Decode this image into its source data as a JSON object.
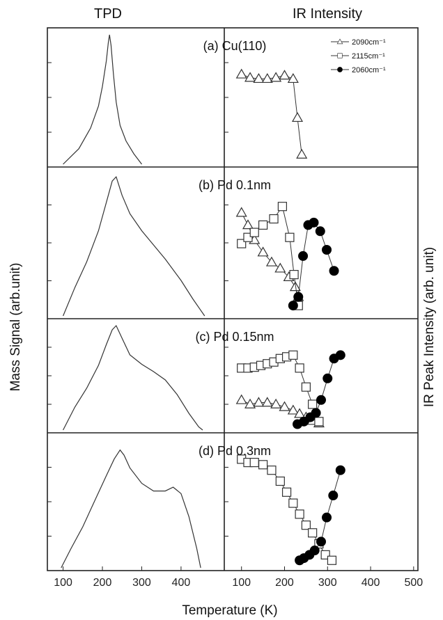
{
  "headers": {
    "left": "TPD",
    "right": "IR Intensity"
  },
  "ylabel_left": "Mass Signal (arb.unit)",
  "ylabel_right": "IR Peak Intensity (arb. unit)",
  "xlabel": "Temperature (K)",
  "colors": {
    "line": "#333333",
    "frame": "#222222",
    "filled": "#000000"
  },
  "chart_data": [
    {
      "type": "line",
      "panel": "TPD",
      "xlabel": "Temperature (K)",
      "ylabel": "Mass Signal (arb.unit)",
      "xlim": [
        60,
        510
      ],
      "xticks": [
        100,
        200,
        300,
        400
      ],
      "grid": false,
      "subplots": [
        {
          "label": "",
          "series": [
            {
              "x": [
                100,
                140,
                170,
                190,
                200,
                210,
                215,
                218,
                222,
                228,
                235,
                245,
                260,
                280,
                300
              ],
              "y": [
                0.0,
                0.12,
                0.28,
                0.45,
                0.6,
                0.8,
                0.94,
                1.0,
                0.92,
                0.7,
                0.48,
                0.3,
                0.18,
                0.08,
                0.0
              ]
            }
          ]
        },
        {
          "label": "",
          "series": [
            {
              "x": [
                100,
                130,
                160,
                190,
                210,
                225,
                235,
                250,
                270,
                300,
                330,
                360,
                400,
                430,
                450,
                460
              ],
              "y": [
                0.0,
                0.2,
                0.38,
                0.6,
                0.8,
                0.95,
                0.98,
                0.85,
                0.72,
                0.6,
                0.5,
                0.4,
                0.25,
                0.12,
                0.04,
                0.0
              ]
            }
          ]
        },
        {
          "label": "",
          "series": [
            {
              "x": [
                100,
                130,
                160,
                190,
                210,
                225,
                235,
                250,
                270,
                300,
                330,
                360,
                390,
                420,
                445,
                455
              ],
              "y": [
                0.0,
                0.22,
                0.4,
                0.62,
                0.82,
                0.96,
                1.0,
                0.88,
                0.72,
                0.63,
                0.56,
                0.48,
                0.34,
                0.16,
                0.03,
                0.0
              ]
            }
          ]
        },
        {
          "label": "",
          "series": [
            {
              "x": [
                95,
                120,
                150,
                180,
                210,
                230,
                245,
                255,
                270,
                300,
                330,
                360,
                380,
                400,
                420,
                440,
                450
              ],
              "y": [
                0.0,
                0.15,
                0.32,
                0.52,
                0.72,
                0.85,
                0.92,
                0.88,
                0.78,
                0.66,
                0.6,
                0.6,
                0.63,
                0.58,
                0.4,
                0.15,
                0.0
              ]
            }
          ]
        }
      ]
    },
    {
      "type": "scatter",
      "panel": "IR Intensity",
      "xlabel": "Temperature (K)",
      "ylabel": "IR Peak Intensity (arb. unit)",
      "xlim": [
        60,
        510
      ],
      "xticks": [
        100,
        200,
        300,
        400,
        500
      ],
      "grid": false,
      "legend": {
        "position": "top-right",
        "entries": [
          {
            "label": "2090cm⁻¹",
            "marker": "triangle-open"
          },
          {
            "label": "2115cm⁻¹",
            "marker": "square-open"
          },
          {
            "label": "2060cm⁻¹",
            "marker": "circle-filled"
          }
        ]
      },
      "subplots": [
        {
          "label": "(a) Cu(110)",
          "series": [
            {
              "name": "2090cm⁻¹",
              "x": [
                100,
                120,
                140,
                160,
                180,
                200,
                220,
                230,
                240
              ],
              "y": [
                0.77,
                0.74,
                0.73,
                0.73,
                0.74,
                0.76,
                0.73,
                0.38,
                0.05
              ]
            }
          ]
        },
        {
          "label": "(b) Pd 0.1nm",
          "series": [
            {
              "name": "2090cm⁻¹",
              "x": [
                100,
                115,
                130,
                150,
                170,
                190,
                210,
                225,
                232
              ],
              "y": [
                0.8,
                0.7,
                0.58,
                0.48,
                0.4,
                0.35,
                0.28,
                0.2,
                0.12
              ]
            },
            {
              "name": "2115cm⁻¹",
              "x": [
                100,
                115,
                130,
                150,
                175,
                195,
                212,
                222,
                232
              ],
              "y": [
                0.55,
                0.6,
                0.64,
                0.7,
                0.75,
                0.85,
                0.6,
                0.3,
                0.05
              ]
            },
            {
              "name": "2060cm⁻¹",
              "x": [
                220,
                232,
                243,
                255,
                268,
                283,
                298,
                315
              ],
              "y": [
                0.05,
                0.12,
                0.45,
                0.7,
                0.72,
                0.65,
                0.5,
                0.33
              ]
            }
          ]
        },
        {
          "label": "(c) Pd 0.15nm",
          "series": [
            {
              "name": "2090cm⁻¹",
              "x": [
                100,
                120,
                140,
                160,
                180,
                200,
                220,
                235,
                250,
                265,
                280
              ],
              "y": [
                0.3,
                0.25,
                0.27,
                0.27,
                0.25,
                0.22,
                0.18,
                0.14,
                0.1,
                0.06,
                0.03
              ]
            },
            {
              "name": "2115cm⁻¹",
              "x": [
                100,
                115,
                130,
                145,
                160,
                175,
                190,
                205,
                220,
                235,
                250,
                265,
                280
              ],
              "y": [
                0.67,
                0.67,
                0.68,
                0.7,
                0.72,
                0.74,
                0.78,
                0.8,
                0.82,
                0.67,
                0.45,
                0.25,
                0.05
              ]
            },
            {
              "name": "2060cm⁻¹",
              "x": [
                230,
                245,
                260,
                273,
                285,
                300,
                315,
                330
              ],
              "y": [
                0.02,
                0.05,
                0.1,
                0.15,
                0.3,
                0.55,
                0.78,
                0.82
              ]
            }
          ]
        },
        {
          "label": "(d) Pd 0.3nm",
          "series": [
            {
              "name": "2115cm⁻¹",
              "x": [
                100,
                115,
                130,
                150,
                170,
                190,
                205,
                220,
                235,
                250,
                265,
                280,
                295,
                310
              ],
              "y": [
                0.95,
                0.92,
                0.92,
                0.9,
                0.85,
                0.75,
                0.65,
                0.55,
                0.45,
                0.35,
                0.28,
                0.18,
                0.08,
                0.03
              ]
            },
            {
              "name": "2060cm⁻¹",
              "x": [
                235,
                245,
                258,
                270,
                285,
                298,
                313,
                330
              ],
              "y": [
                0.03,
                0.05,
                0.08,
                0.12,
                0.2,
                0.42,
                0.62,
                0.85
              ]
            }
          ]
        }
      ]
    }
  ]
}
